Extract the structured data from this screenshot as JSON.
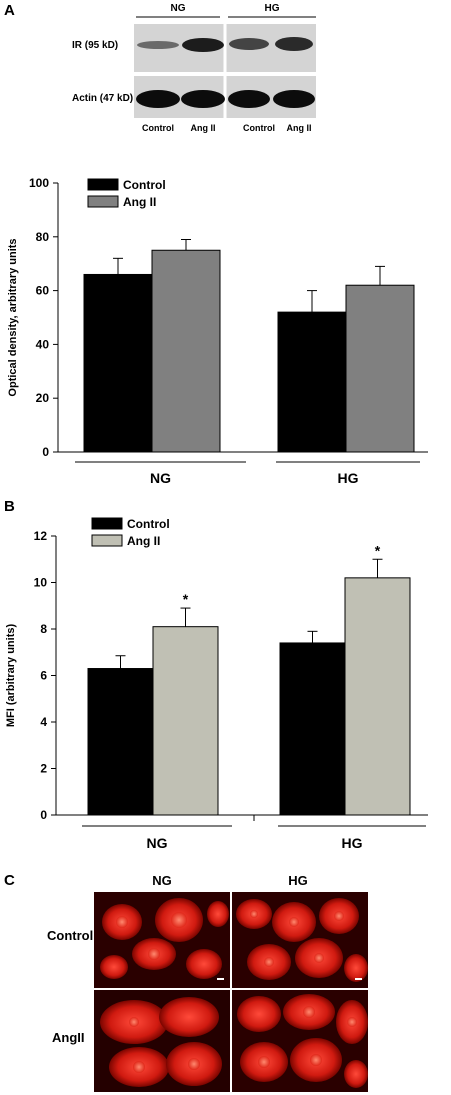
{
  "panel_a": {
    "letter": "A",
    "blot": {
      "group_labels": [
        "NG",
        "HG"
      ],
      "row_labels": [
        "IR (95 kD)",
        "Actin (47 kD)"
      ],
      "lane_labels": [
        "Control",
        "Ang II",
        "Control",
        "Ang II"
      ]
    }
  },
  "panel_b": {
    "letter": "B"
  },
  "panel_c": {
    "letter": "C",
    "column_labels": [
      "NG",
      "HG"
    ],
    "row_labels": [
      "Control",
      "AngII"
    ]
  },
  "chart_data": [
    {
      "type": "bar",
      "title": "",
      "xlabel": "",
      "ylabel": "Optical density, arbitrary units",
      "ylim": [
        0,
        100
      ],
      "yticks": [
        0,
        20,
        40,
        60,
        80,
        100
      ],
      "categories": [
        "NG",
        "HG"
      ],
      "series": [
        {
          "name": "Control",
          "values": [
            66,
            52
          ],
          "errors": [
            6,
            8
          ],
          "color": "#000000"
        },
        {
          "name": "Ang II",
          "values": [
            75,
            62
          ],
          "errors": [
            4,
            7
          ],
          "color": "#808080"
        }
      ],
      "annotations": [],
      "legend": "top-left",
      "grid": false
    },
    {
      "type": "bar",
      "title": "",
      "xlabel": "",
      "ylabel": "MFI (arbitrary units)",
      "ylim": [
        0,
        12
      ],
      "yticks": [
        0,
        2,
        4,
        6,
        8,
        10,
        12
      ],
      "categories": [
        "NG",
        "HG"
      ],
      "series": [
        {
          "name": "Control",
          "values": [
            6.3,
            7.4
          ],
          "errors": [
            0.55,
            0.5
          ],
          "color": "#000000"
        },
        {
          "name": "Ang II",
          "values": [
            8.1,
            10.2
          ],
          "errors": [
            0.8,
            0.8
          ],
          "color": "#c0c0b4"
        }
      ],
      "annotations": [
        "*",
        "*"
      ],
      "legend": "top-left",
      "grid": false
    }
  ]
}
